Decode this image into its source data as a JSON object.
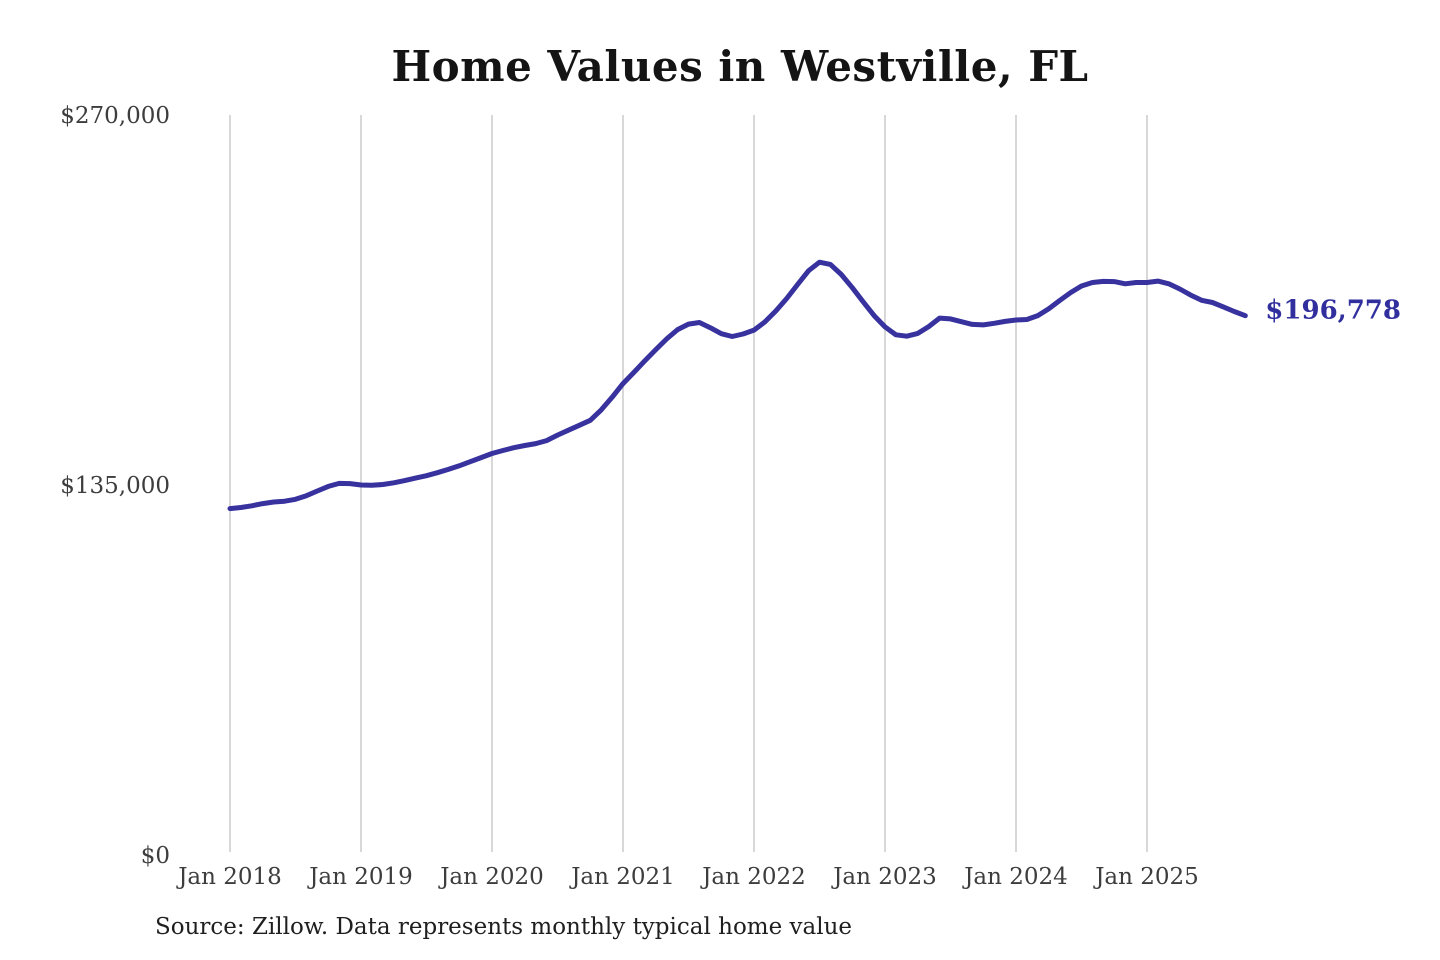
{
  "title": "Home Values in Westville, FL",
  "source_note": "Source: Zillow. Data represents monthly typical home value",
  "annotation": {
    "latest_value_label": "$196,778"
  },
  "colors": {
    "background": "#ffffff",
    "line": "#37329e",
    "grid": "#cbcbcb",
    "tick_text": "#3d3d3d",
    "title_text": "#141414",
    "source_text": "#1f1f1f",
    "annotation_text": "#312f9e"
  },
  "chart_data": {
    "type": "line",
    "title": "Home Values in Westville, FL",
    "xlabel": "",
    "ylabel": "",
    "ylim": [
      0,
      270000
    ],
    "grid": "vertical-only",
    "legend": "none",
    "frequency": "monthly",
    "start_month": "Jan 2018",
    "end_month": "Oct 2025",
    "y_ticks": [
      {
        "value": 0,
        "label": "$0"
      },
      {
        "value": 135000,
        "label": "$135,000"
      },
      {
        "value": 270000,
        "label": "$270,000"
      }
    ],
    "x_ticks": [
      "Jan 2018",
      "Jan 2019",
      "Jan 2020",
      "Jan 2021",
      "Jan 2022",
      "Jan 2023",
      "Jan 2024",
      "Jan 2025"
    ],
    "series": [
      {
        "name": "Monthly typical home value",
        "color": "#37329e",
        "end_label": "$196,778",
        "latest_value": 196778,
        "values": [
          126400,
          126800,
          127400,
          128200,
          128800,
          129100,
          129800,
          131100,
          132800,
          134500,
          135600,
          135500,
          135000,
          134900,
          135200,
          135800,
          136600,
          137500,
          138400,
          139500,
          140700,
          142000,
          143500,
          145000,
          146500,
          147600,
          148600,
          149400,
          150100,
          151200,
          153200,
          155000,
          156800,
          158600,
          162400,
          167000,
          172000,
          176100,
          180300,
          184400,
          188300,
          191700,
          193700,
          194300,
          192400,
          190200,
          189200,
          190100,
          191500,
          194500,
          198500,
          203100,
          208200,
          213200,
          216300,
          215500,
          211800,
          207000,
          201800,
          196800,
          192700,
          189800,
          189300,
          190300,
          192800,
          195900,
          195600,
          194600,
          193600,
          193400,
          194000,
          194700,
          195200,
          195400,
          196800,
          199300,
          202300,
          205200,
          207600,
          208900,
          209300,
          209200,
          208400,
          208900,
          208900,
          209400,
          208400,
          206500,
          204300,
          202400,
          201600,
          200000,
          198300,
          196778
        ]
      }
    ]
  }
}
